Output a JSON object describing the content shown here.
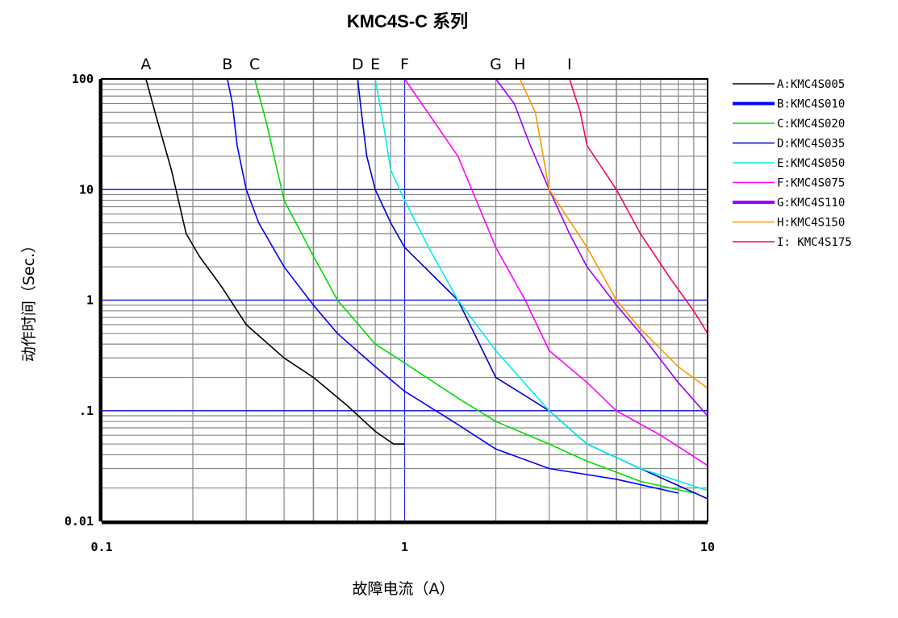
{
  "chart_data": {
    "type": "line",
    "title": "KMC4S-C 系列",
    "xlabel": "故障电流（A）",
    "ylabel": "动作时间（Sec.）",
    "x_scale": "log",
    "y_scale": "log",
    "xlim": [
      0.1,
      10
    ],
    "ylim": [
      0.01,
      100
    ],
    "grid": true,
    "legend_position": "right",
    "x_ticks": [
      {
        "value": 0.1,
        "label": "0.1"
      },
      {
        "value": 1,
        "label": "1"
      },
      {
        "value": 10,
        "label": "10"
      }
    ],
    "y_ticks": [
      {
        "value": 100,
        "label": "100"
      },
      {
        "value": 10,
        "label": "10"
      },
      {
        "value": 1,
        "label": "1"
      },
      {
        "value": 0.1,
        "label": ".1"
      },
      {
        "value": 0.01,
        "label": "0.01"
      }
    ],
    "series": [
      {
        "name": "A:KMC4S005",
        "letter": "A",
        "color": "#000000",
        "points": [
          [
            0.14,
            100
          ],
          [
            0.15,
            50
          ],
          [
            0.17,
            15
          ],
          [
            0.19,
            4
          ],
          [
            0.21,
            2.5
          ],
          [
            0.25,
            1.3
          ],
          [
            0.3,
            0.6
          ],
          [
            0.4,
            0.3
          ],
          [
            0.5,
            0.2
          ],
          [
            0.65,
            0.11
          ],
          [
            0.8,
            0.065
          ],
          [
            0.92,
            0.05
          ],
          [
            1.0,
            0.05
          ]
        ]
      },
      {
        "name": "B:KMC4S010",
        "letter": "B",
        "color": "#0000ff",
        "points": [
          [
            0.26,
            100
          ],
          [
            0.27,
            60
          ],
          [
            0.28,
            25
          ],
          [
            0.3,
            10
          ],
          [
            0.33,
            5
          ],
          [
            0.4,
            2
          ],
          [
            0.5,
            0.9
          ],
          [
            0.6,
            0.5
          ],
          [
            0.8,
            0.25
          ],
          [
            1.0,
            0.15
          ],
          [
            1.5,
            0.075
          ],
          [
            2.0,
            0.045
          ],
          [
            3.0,
            0.03
          ],
          [
            5.0,
            0.024
          ],
          [
            8.0,
            0.018
          ]
        ]
      },
      {
        "name": "C:KMC4S020",
        "letter": "C",
        "color": "#00dd00",
        "points": [
          [
            0.32,
            100
          ],
          [
            0.35,
            40
          ],
          [
            0.4,
            8
          ],
          [
            0.5,
            2.5
          ],
          [
            0.6,
            1.0
          ],
          [
            0.8,
            0.4
          ],
          [
            1.0,
            0.27
          ],
          [
            1.5,
            0.13
          ],
          [
            2.0,
            0.08
          ],
          [
            3.0,
            0.05
          ],
          [
            4.0,
            0.035
          ],
          [
            6.0,
            0.023
          ],
          [
            9.0,
            0.018
          ]
        ]
      },
      {
        "name": "D:KMC4S035",
        "letter": "D",
        "color": "#0000cc",
        "points": [
          [
            0.7,
            100
          ],
          [
            0.72,
            50
          ],
          [
            0.75,
            20
          ],
          [
            0.8,
            10
          ],
          [
            0.9,
            5
          ],
          [
            1.0,
            3
          ],
          [
            1.5,
            1
          ],
          [
            2.0,
            0.2
          ],
          [
            3.0,
            0.1
          ],
          [
            4.0,
            0.05
          ],
          [
            6.0,
            0.03
          ],
          [
            10,
            0.016
          ]
        ]
      },
      {
        "name": "E:KMC4S050",
        "letter": "E",
        "color": "#00eeee",
        "points": [
          [
            0.8,
            100
          ],
          [
            0.85,
            40
          ],
          [
            0.9,
            15
          ],
          [
            1.0,
            8
          ],
          [
            1.2,
            3
          ],
          [
            1.5,
            1
          ],
          [
            2.0,
            0.35
          ],
          [
            3.0,
            0.1
          ],
          [
            4.0,
            0.05
          ],
          [
            6.0,
            0.03
          ],
          [
            10,
            0.019
          ]
        ]
      },
      {
        "name": "F:KMC4S075",
        "letter": "F",
        "color": "#ff00ff",
        "points": [
          [
            1.0,
            100
          ],
          [
            1.5,
            20
          ],
          [
            2.0,
            3
          ],
          [
            2.5,
            1
          ],
          [
            3.0,
            0.35
          ],
          [
            4.0,
            0.18
          ],
          [
            5.0,
            0.1
          ],
          [
            7.0,
            0.06
          ],
          [
            10,
            0.032
          ]
        ]
      },
      {
        "name": "G:KMC4S110",
        "letter": "G",
        "color": "#9900ff",
        "points": [
          [
            2.0,
            100
          ],
          [
            2.3,
            60
          ],
          [
            2.6,
            25
          ],
          [
            3.0,
            10
          ],
          [
            3.5,
            4
          ],
          [
            4.0,
            2
          ],
          [
            5.0,
            0.9
          ],
          [
            6.0,
            0.5
          ],
          [
            8.0,
            0.18
          ],
          [
            10,
            0.09
          ]
        ]
      },
      {
        "name": "H:KMC4S150",
        "letter": "H",
        "color": "#ff9900",
        "points": [
          [
            2.4,
            100
          ],
          [
            2.7,
            50
          ],
          [
            3.0,
            10
          ],
          [
            4.0,
            3
          ],
          [
            5.0,
            1
          ],
          [
            6.0,
            0.55
          ],
          [
            8.0,
            0.25
          ],
          [
            10,
            0.16
          ]
        ]
      },
      {
        "name": "I: KMC4S175",
        "letter": "I",
        "color": "#ff0066",
        "points": [
          [
            3.5,
            100
          ],
          [
            3.8,
            50
          ],
          [
            4.0,
            25
          ],
          [
            5.0,
            10
          ],
          [
            6.0,
            4
          ],
          [
            7.5,
            1.6
          ],
          [
            9.0,
            0.8
          ],
          [
            10,
            0.5
          ]
        ]
      }
    ]
  }
}
